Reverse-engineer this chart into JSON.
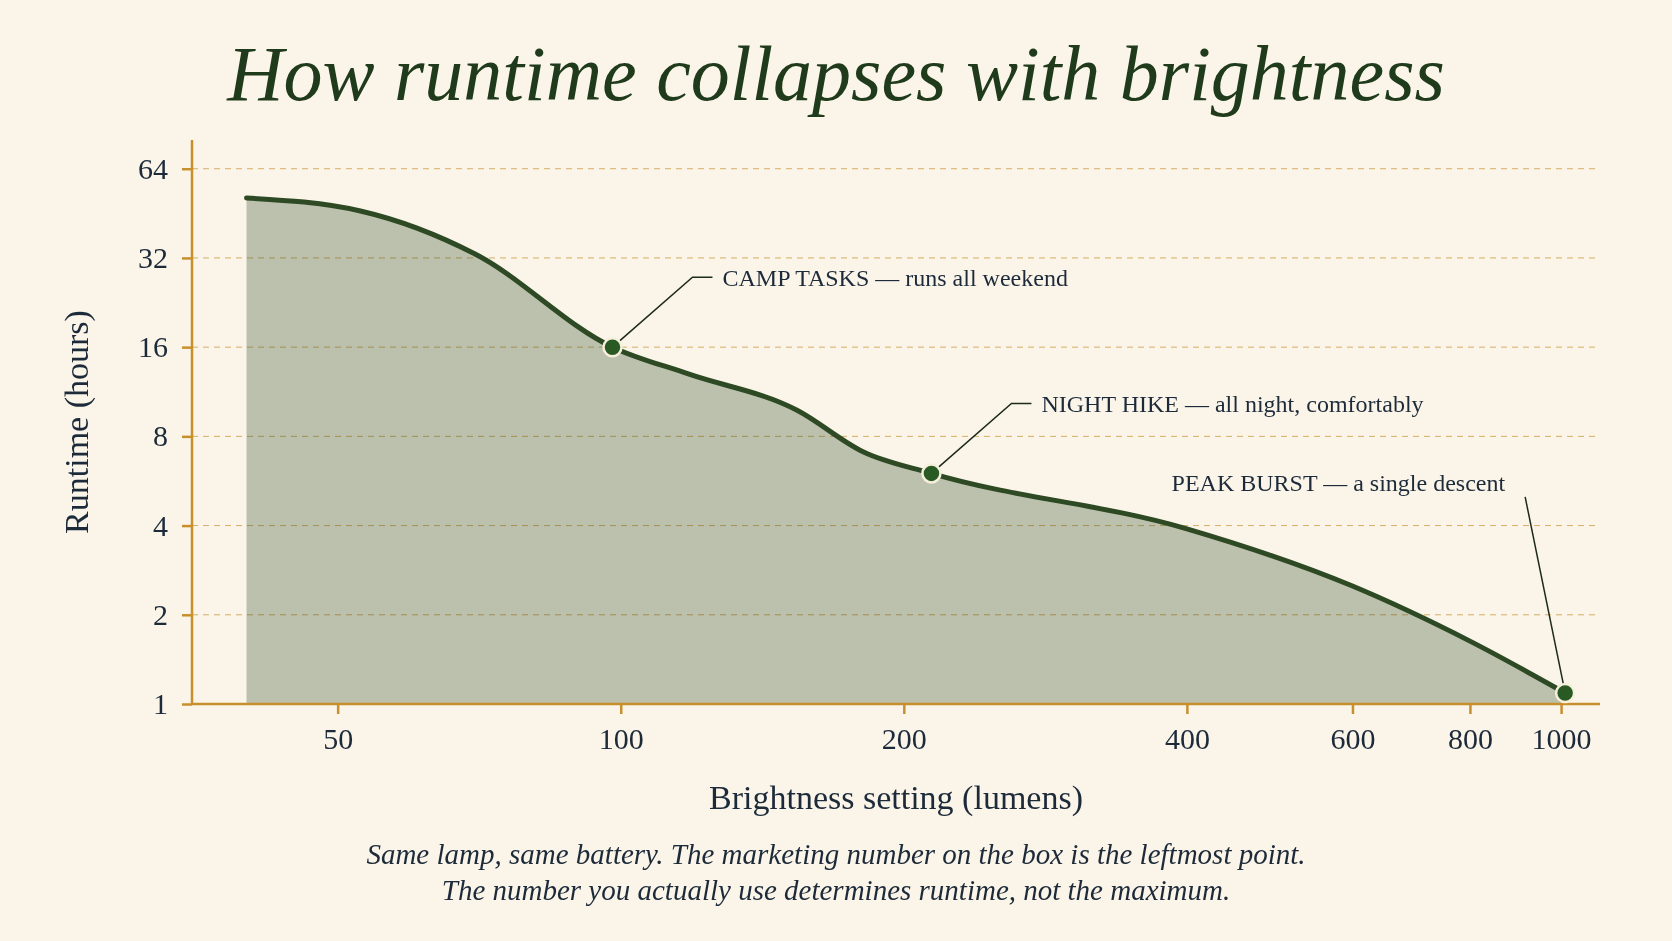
{
  "chart_data": {
    "type": "area",
    "title": "How runtime collapses with brightness",
    "xlabel": "Brightness setting (lumens)",
    "ylabel": "Runtime (hours)",
    "log": "xy",
    "xlim": [
      35,
      1100
    ],
    "ylim": [
      1,
      80
    ],
    "xticks": [
      50,
      100,
      200,
      400,
      600,
      800,
      1000
    ],
    "yticks": [
      1,
      2,
      4,
      8,
      16,
      32,
      64
    ],
    "grid": "y",
    "series": [
      {
        "color": "#2e4a24",
        "x": [
          40,
          53,
          70,
          98,
          118,
          154,
          181,
          214,
          400,
          600,
          800,
          1010
        ],
        "values": [
          51,
          46,
          33,
          16,
          13,
          9.8,
          7.1,
          6,
          3.9,
          2.5,
          1.63,
          1.09
        ]
      }
    ],
    "annotations": [
      {
        "text": "CAMP TASKS — runs all weekend",
        "x": 98,
        "y": 16
      },
      {
        "text": "NIGHT HIKE — all night, comfortably",
        "x": 214,
        "y": 6
      },
      {
        "text": "PEAK BURST — a single descent",
        "x": 1010,
        "y": 1.09
      },
      "Same lamp, same battery. The marketing number on the box is the leftmost point.",
      "The number you actually use determines runtime, not the maximum."
    ]
  }
}
